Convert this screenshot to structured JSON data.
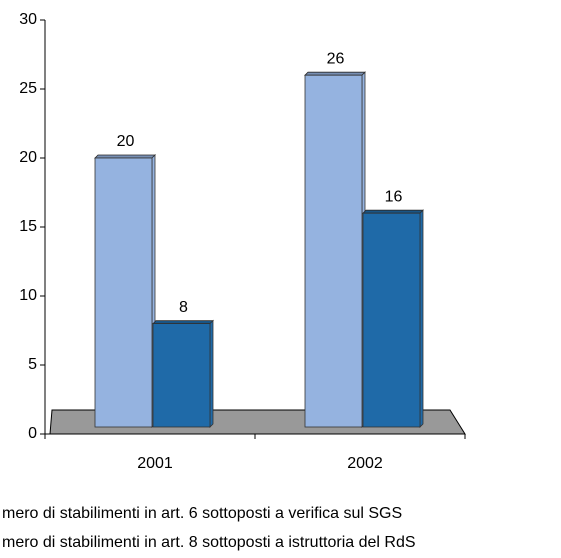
{
  "chart_data": {
    "type": "bar",
    "categories": [
      "2001",
      "2002"
    ],
    "series": [
      {
        "name": "mero di stabilimenti in art. 6 sottoposti a verifica sul SGS",
        "color": "#95b3e0",
        "values": [
          20,
          26
        ]
      },
      {
        "name": "mero di stabilimenti in art. 8 sottoposti a istruttoria del RdS",
        "color": "#1f6aa8",
        "values": [
          8,
          16
        ]
      }
    ],
    "ylim": [
      0,
      30
    ],
    "yticks": [
      0,
      5,
      10,
      15,
      20,
      25,
      30
    ],
    "floor_color": "#999999"
  }
}
